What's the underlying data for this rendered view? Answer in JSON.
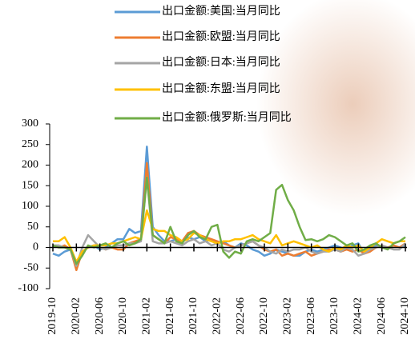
{
  "chart_data": {
    "type": "line",
    "categories": [
      "2019-10",
      null,
      null,
      null,
      "2020-02",
      null,
      null,
      null,
      "2020-06",
      null,
      null,
      null,
      "2020-10",
      null,
      null,
      null,
      "2021-02",
      null,
      null,
      null,
      "2021-06",
      null,
      null,
      null,
      "2021-10",
      null,
      null,
      null,
      "2022-02",
      null,
      null,
      null,
      "2022-06",
      null,
      null,
      null,
      "2022-10",
      null,
      null,
      null,
      "2023-02",
      null,
      null,
      null,
      "2023-06",
      null,
      null,
      null,
      "2023-10",
      null,
      null,
      null,
      "2024-02",
      null,
      null,
      null,
      "2024-06",
      null,
      null,
      null,
      "2024-10"
    ],
    "ylim": [
      -100,
      300
    ],
    "yticks": [
      -100,
      -50,
      0,
      50,
      100,
      150,
      200,
      250,
      300
    ],
    "series": [
      {
        "name": "出口金额:美国:当月同比",
        "color": "#5b9bd5",
        "values": [
          -15,
          -20,
          -10,
          -5,
          -45,
          -10,
          0,
          5,
          -5,
          0,
          10,
          20,
          20,
          45,
          35,
          40,
          245,
          50,
          30,
          15,
          15,
          20,
          15,
          25,
          20,
          25,
          15,
          20,
          10,
          15,
          5,
          0,
          10,
          5,
          -5,
          -10,
          -20,
          -15,
          -5,
          -10,
          -15,
          -20,
          -20,
          -10,
          -5,
          -10,
          -5,
          0,
          5,
          0,
          -5,
          5,
          10,
          -15,
          0,
          5,
          0,
          0,
          5,
          0,
          5
        ]
      },
      {
        "name": "出口金额:欧盟:当月同比",
        "color": "#ed7d31",
        "values": [
          5,
          0,
          5,
          -5,
          -55,
          -10,
          0,
          5,
          0,
          -5,
          0,
          -5,
          -5,
          10,
          15,
          20,
          205,
          30,
          20,
          10,
          25,
          20,
          15,
          35,
          40,
          30,
          25,
          20,
          15,
          10,
          5,
          0,
          5,
          10,
          15,
          5,
          -5,
          -10,
          -5,
          -20,
          -15,
          -20,
          -15,
          -10,
          -20,
          -15,
          -10,
          -5,
          -5,
          -10,
          -5,
          -10,
          -5,
          -15,
          -10,
          0,
          5,
          0,
          5,
          0,
          10
        ]
      },
      {
        "name": "出口金额:日本:当月同比",
        "color": "#a5a5a5",
        "values": [
          5,
          5,
          0,
          -5,
          -45,
          0,
          30,
          15,
          0,
          -5,
          0,
          5,
          5,
          10,
          10,
          15,
          170,
          15,
          10,
          10,
          15,
          10,
          5,
          15,
          20,
          10,
          15,
          5,
          10,
          -5,
          -10,
          0,
          5,
          10,
          15,
          5,
          0,
          -10,
          -15,
          -5,
          -10,
          -5,
          -5,
          0,
          -10,
          -15,
          -10,
          -10,
          -5,
          -10,
          0,
          -5,
          -20,
          -15,
          -5,
          0,
          5,
          0,
          -5,
          -5,
          10
        ]
      },
      {
        "name": "出口金额:东盟:当月同比",
        "color": "#ffc000",
        "values": [
          15,
          15,
          25,
          0,
          -35,
          -10,
          0,
          5,
          5,
          5,
          10,
          10,
          15,
          20,
          25,
          20,
          90,
          45,
          40,
          40,
          30,
          25,
          15,
          20,
          35,
          30,
          20,
          15,
          10,
          15,
          15,
          20,
          20,
          25,
          30,
          20,
          15,
          10,
          30,
          5,
          10,
          15,
          10,
          5,
          0,
          5,
          -5,
          -10,
          0,
          -5,
          5,
          0,
          5,
          -10,
          0,
          10,
          20,
          15,
          10,
          15,
          15
        ]
      },
      {
        "name": "出口金额:俄罗斯:当月同比",
        "color": "#70ad47",
        "values": [
          5,
          0,
          0,
          -5,
          -40,
          -20,
          5,
          0,
          5,
          10,
          0,
          10,
          15,
          5,
          10,
          20,
          170,
          30,
          20,
          10,
          50,
          15,
          10,
          30,
          40,
          25,
          20,
          50,
          55,
          -10,
          -25,
          -10,
          -15,
          15,
          20,
          15,
          25,
          35,
          140,
          152,
          115,
          90,
          50,
          18,
          20,
          15,
          20,
          30,
          25,
          15,
          5,
          10,
          -10,
          -5,
          5,
          10,
          0,
          -5,
          10,
          15,
          25
        ]
      }
    ]
  }
}
